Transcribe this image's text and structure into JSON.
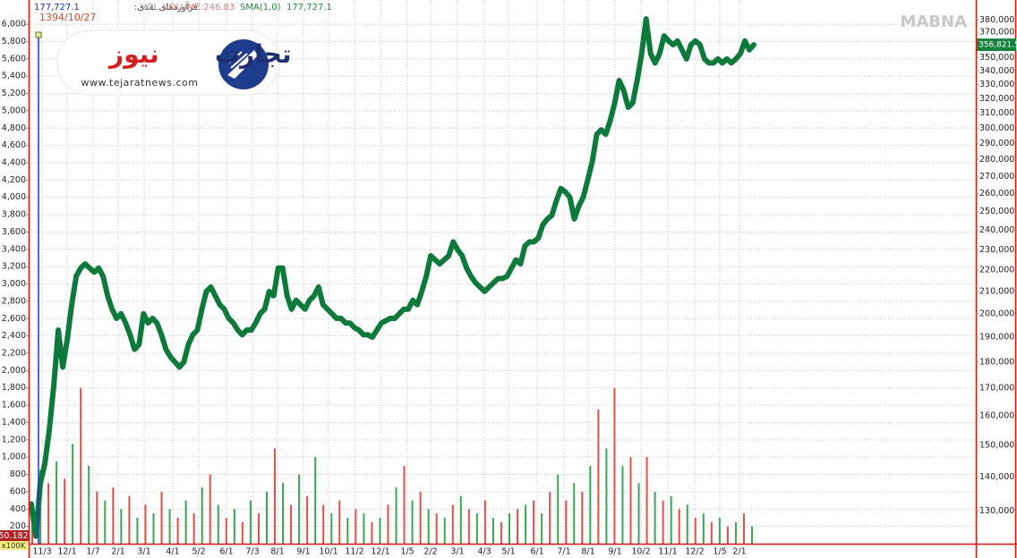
{
  "chart_data": {
    "type": "line",
    "header": {
      "last": "177,727.1",
      "symbol": "فرآوردهای نقدی:",
      "vol": "VOL",
      "volume": "VOLUME:246.83",
      "sma": "SMA(1,0)",
      "sma_value": "177,727.1"
    },
    "cursor_date": "1394/10/27",
    "watermark": "MABNA",
    "logo": {
      "name_part1": "تجارت",
      "name_part2": "نیوز",
      "url": "www.tejaratnews.com"
    },
    "last_value_label": "356,821.5",
    "volume_value_label": "50.182",
    "volume_unit_label": "x100K",
    "x_labels": [
      "11/3",
      "12/1",
      "1/7",
      "2/1",
      "3/1",
      "4/1",
      "5/2",
      "6/1",
      "7/3",
      "8/1",
      "9/1",
      "10/1",
      "11/2",
      "12/1",
      "1/5",
      "2/2",
      "3/1",
      "4/3",
      "5/1",
      "6/1",
      "7/1",
      "8/1",
      "9/1",
      "10/2",
      "11/1",
      "12/2",
      "1/5",
      "2/1"
    ],
    "series": [
      {
        "color": "#0d7a3b",
        "axis": "y2",
        "values": [
          132000,
          123000,
          138000,
          144000,
          155000,
          171000,
          193000,
          178000,
          189000,
          204000,
          217000,
          221000,
          223000,
          221000,
          219000,
          221000,
          217000,
          208000,
          202000,
          198000,
          200000,
          196000,
          191000,
          185000,
          187000,
          200000,
          196000,
          198000,
          196000,
          191000,
          185000,
          182000,
          180000,
          178000,
          180000,
          187000,
          191000,
          193000,
          202000,
          210000,
          212000,
          208000,
          204000,
          202000,
          198000,
          196000,
          193000,
          191000,
          193000,
          193000,
          196000,
          200000,
          202000,
          210000,
          208000,
          221000,
          221000,
          208000,
          202000,
          206000,
          204000,
          202000,
          206000,
          208000,
          212000,
          204000,
          202000,
          200000,
          198000,
          198000,
          196000,
          196000,
          194000,
          193000,
          191000,
          191000,
          190000,
          193000,
          196000,
          197000,
          198000,
          198000,
          200000,
          202000,
          202000,
          206000,
          204000,
          210000,
          217000,
          227000,
          225000,
          223000,
          225000,
          227000,
          234000,
          230000,
          227000,
          221000,
          217000,
          214000,
          212000,
          210000,
          212000,
          214000,
          216000,
          216000,
          217000,
          221000,
          225000,
          223000,
          232000,
          234000,
          234000,
          236000,
          243000,
          246000,
          248000,
          256000,
          263000,
          261000,
          258000,
          246000,
          253000,
          258000,
          268000,
          279000,
          296000,
          299000,
          296000,
          305000,
          317000,
          333000,
          326000,
          314000,
          317000,
          333000,
          353000,
          381000,
          353000,
          346000,
          353000,
          367000,
          363000,
          360000,
          363000,
          356000,
          349000,
          360000,
          363000,
          360000,
          349000,
          346000,
          346000,
          349000,
          346000,
          349000,
          346000,
          349000,
          353000,
          363000,
          356000,
          360000
        ]
      }
    ],
    "volume": {
      "type": "bar",
      "colors": [
        "#e0504c",
        "#3aa655"
      ],
      "values": [
        450,
        850,
        700,
        950,
        750,
        1150,
        1800,
        900,
        600,
        500,
        650,
        400,
        550,
        300,
        450,
        350,
        600,
        400,
        300,
        500,
        350,
        650,
        800,
        450,
        300,
        400,
        250,
        500,
        350,
        600,
        1100,
        700,
        450,
        800,
        550,
        1000,
        450,
        350,
        500,
        300,
        400,
        350,
        250,
        300,
        450,
        650,
        900,
        500,
        600,
        400,
        350,
        300,
        450,
        550,
        400,
        350,
        500,
        300,
        250,
        350,
        400,
        450,
        500,
        350,
        600,
        800,
        500,
        700,
        600,
        900,
        1550,
        1100,
        1800,
        900,
        1000,
        700,
        1000,
        600,
        500,
        550,
        400,
        450,
        300,
        350,
        250,
        300,
        200,
        250,
        350,
        200
      ]
    },
    "ylim": [
      0,
      6280
    ],
    "yticks": [
      200,
      400,
      600,
      800,
      {
        "value": 1000,
        "label": "1,000"
      },
      {
        "value": 1200,
        "label": "1,200"
      },
      {
        "value": 1400,
        "label": "1,400"
      },
      {
        "value": 1600,
        "label": "1,600"
      },
      {
        "value": 1800,
        "label": "1,800"
      },
      {
        "value": 2000,
        "label": "2,000"
      },
      {
        "value": 2200,
        "label": "2,200"
      },
      {
        "value": 2400,
        "label": "2,400"
      },
      {
        "value": 2600,
        "label": "2,600"
      },
      {
        "value": 2800,
        "label": "2,800"
      },
      {
        "value": 3000,
        "label": "3,000"
      },
      {
        "value": 3200,
        "label": "3,200"
      },
      {
        "value": 3400,
        "label": "3,400"
      },
      {
        "value": 3600,
        "label": "3,600"
      },
      {
        "value": 3800,
        "label": "3,800"
      },
      {
        "value": 4000,
        "label": "4,000"
      },
      {
        "value": 4200,
        "label": "4,200"
      },
      {
        "value": 4400,
        "label": "4,400"
      },
      {
        "value": 4600,
        "label": "4,600"
      },
      {
        "value": 4800,
        "label": "4,800"
      },
      {
        "value": 5000,
        "label": "5,000"
      },
      {
        "value": 5200,
        "label": "5,200"
      },
      {
        "value": 5400,
        "label": "5,400"
      },
      {
        "value": 5600,
        "label": "5,600"
      },
      {
        "value": 5800,
        "label": "5,800"
      },
      {
        "value": 6000,
        "label": "6,000"
      }
    ],
    "y2lim": [
      121000,
      397000
    ],
    "y2log": true,
    "y2ticks": [
      {
        "value": 130000,
        "label": "130,000"
      },
      {
        "value": 140000,
        "label": "140,000"
      },
      {
        "value": 150000,
        "label": "150,000"
      },
      {
        "value": 160000,
        "label": "160,000"
      },
      {
        "value": 170000,
        "label": "170,000"
      },
      {
        "value": 180000,
        "label": "180,000"
      },
      {
        "value": 190000,
        "label": "190,000"
      },
      {
        "value": 200000,
        "label": "200,000"
      },
      {
        "value": 210000,
        "label": "210,000"
      },
      {
        "value": 220000,
        "label": "220,000"
      },
      {
        "value": 230000,
        "label": "230,000"
      },
      {
        "value": 240000,
        "label": "240,000"
      },
      {
        "value": 250000,
        "label": "250,000"
      },
      {
        "value": 260000,
        "label": "260,000"
      },
      {
        "value": 270000,
        "label": "270,000"
      },
      {
        "value": 280000,
        "label": "280,000"
      },
      {
        "value": 290000,
        "label": "290,000"
      },
      {
        "value": 300000,
        "label": "300,000"
      },
      {
        "value": 310000,
        "label": "310,000"
      },
      {
        "value": 320000,
        "label": "320,000"
      },
      {
        "value": 330000,
        "label": "330,000"
      },
      {
        "value": 340000,
        "label": "340,000"
      },
      {
        "value": 350000,
        "label": "350,000"
      },
      {
        "value": 360000,
        "label": "360,000"
      },
      {
        "value": 370000,
        "label": "370,000"
      },
      {
        "value": 380000,
        "label": "380,000"
      }
    ],
    "grid": true
  }
}
